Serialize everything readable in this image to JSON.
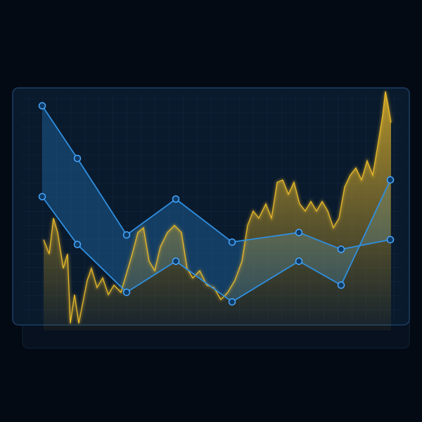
{
  "chart_data": {
    "type": "line",
    "xlim": [
      0,
      100
    ],
    "ylim": [
      0,
      100
    ],
    "series": [
      {
        "color": "#2f8fe0",
        "x": [
          0,
          10,
          24,
          38,
          54,
          73,
          85,
          99
        ],
        "values": [
          94,
          72,
          40,
          55,
          37,
          41,
          34,
          38
        ]
      },
      {
        "color": "#2f8fe0",
        "x": [
          0,
          10,
          24,
          38,
          54,
          73,
          85,
          99
        ],
        "values": [
          56,
          36,
          16,
          29,
          12,
          29,
          19,
          63
        ]
      },
      {
        "color": "#e8b92a",
        "x": [
          0.4,
          2,
          3.2,
          4.4,
          6,
          7.2,
          8,
          9.2,
          10.4,
          11.6,
          12.8,
          14,
          15.6,
          17.2,
          18.8,
          20.4,
          22.4,
          24,
          25.6,
          27.2,
          28.8,
          30.4,
          32,
          33.6,
          35.6,
          37.6,
          39.6,
          41.2,
          42.8,
          44.8,
          46.8,
          48.8,
          50.8,
          52.8,
          54.8,
          56.8,
          58.4,
          60,
          61.6,
          63.6,
          65.2,
          66.8,
          68.4,
          70,
          71.6,
          73.2,
          74.8,
          76.4,
          78,
          79.6,
          81.2,
          82.8,
          84.4,
          86,
          87.6,
          89.2,
          90.8,
          92.4,
          94,
          95.6,
          96.8,
          97.6,
          98.4,
          99.2
        ],
        "values": [
          38,
          32,
          47,
          41,
          26,
          32,
          3,
          15,
          3,
          12,
          21,
          26,
          18,
          22,
          15,
          19,
          16,
          24,
          32,
          41,
          43,
          29,
          25,
          35,
          41,
          44,
          41,
          26,
          22,
          25,
          19,
          18,
          13,
          16,
          21,
          29,
          44,
          50,
          47,
          53,
          47,
          62,
          63,
          57,
          62,
          53,
          50,
          54,
          50,
          54,
          50,
          43,
          47,
          60,
          65,
          68,
          63,
          71,
          65,
          79,
          90,
          100,
          94,
          87
        ]
      }
    ]
  }
}
